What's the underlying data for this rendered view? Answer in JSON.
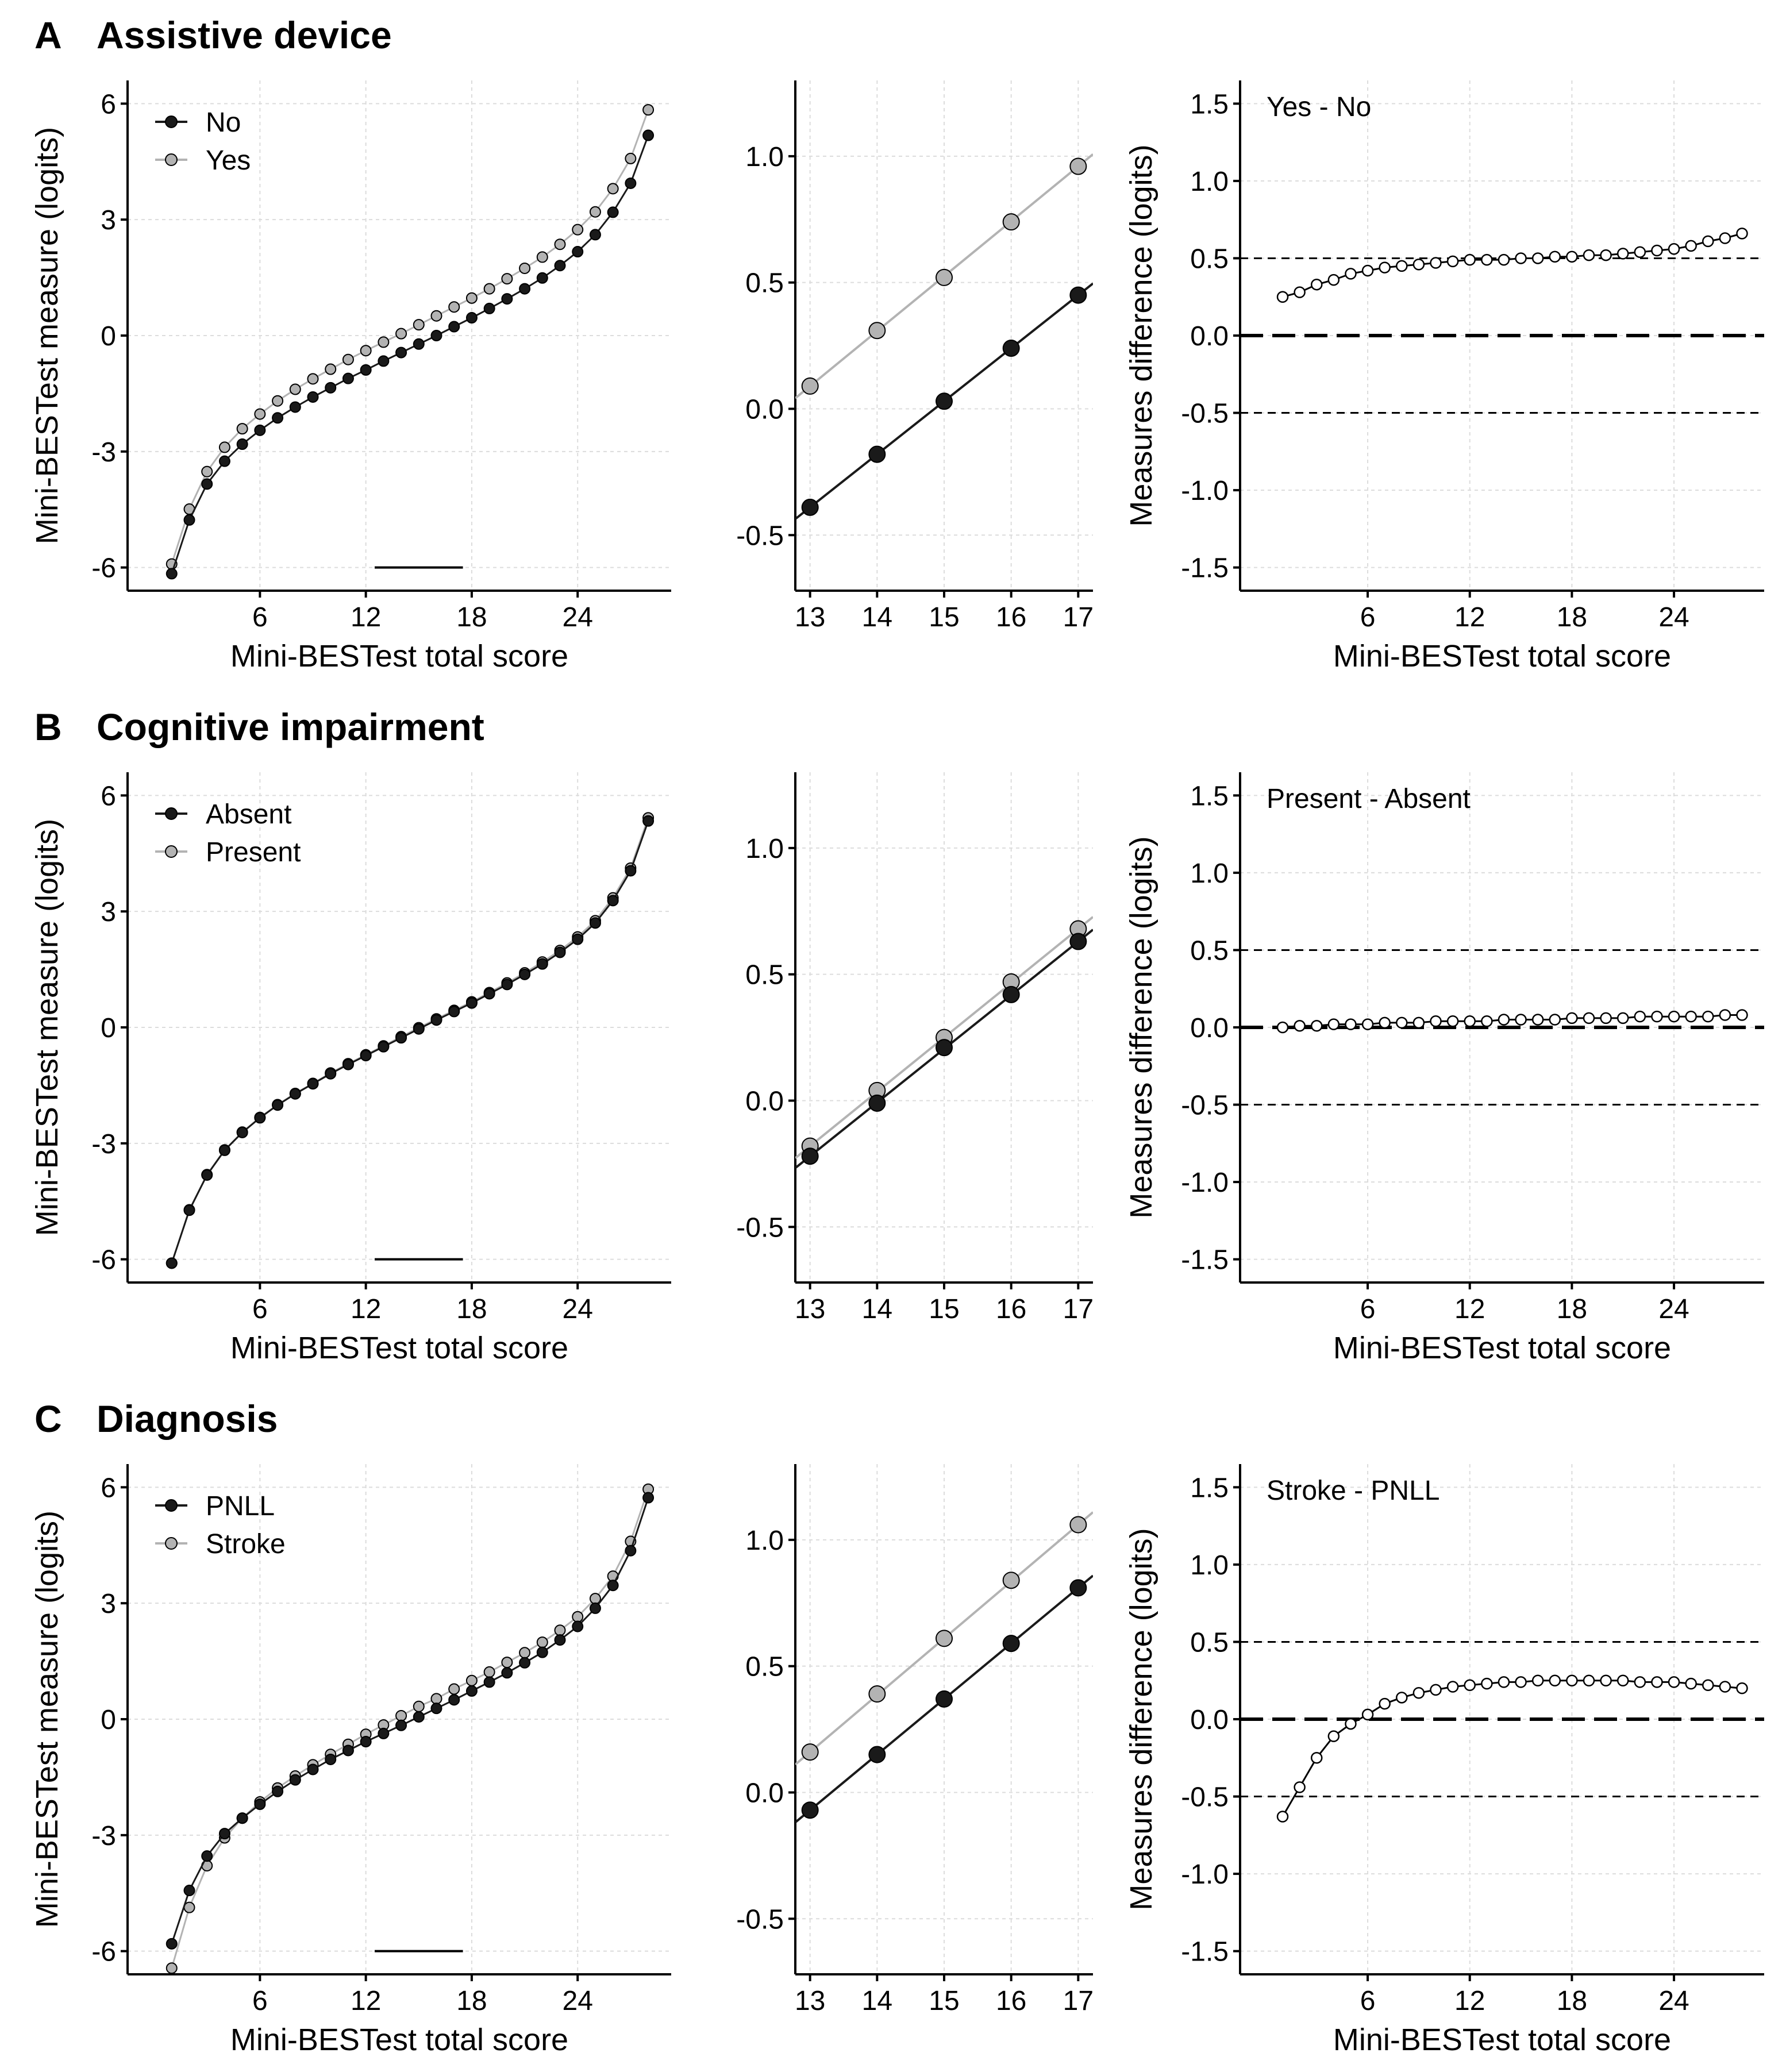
{
  "chart_data": [
    {
      "panel": "A",
      "title": "Assistive device",
      "legend": [
        {
          "label": "No",
          "color": "#1a1a1a"
        },
        {
          "label": "Yes",
          "color": "#b3b3b3"
        }
      ],
      "charts": [
        {
          "type": "line",
          "role": "full",
          "xlabel": "Mini-BESTest total score",
          "ylabel": "Mini-BESTest measure (logits)",
          "xlim": [
            -1.5,
            29.3
          ],
          "ylim": [
            -6.6,
            6.6
          ],
          "xticks": [
            6,
            12,
            18,
            24
          ],
          "yticks": [
            -6,
            -3,
            0,
            3,
            6
          ],
          "x": [
            1,
            2,
            3,
            4,
            5,
            6,
            7,
            8,
            9,
            10,
            11,
            12,
            13,
            14,
            15,
            16,
            17,
            18,
            19,
            20,
            21,
            22,
            23,
            24,
            25,
            26,
            27,
            28
          ],
          "series": [
            {
              "name": "No",
              "color": "#1a1a1a",
              "values": [
                -6.16,
                -4.77,
                -3.84,
                -3.25,
                -2.81,
                -2.45,
                -2.13,
                -1.85,
                -1.59,
                -1.35,
                -1.11,
                -0.89,
                -0.66,
                -0.44,
                -0.22,
                0.0,
                0.23,
                0.46,
                0.7,
                0.95,
                1.21,
                1.49,
                1.81,
                2.17,
                2.61,
                3.19,
                3.94,
                5.18
              ]
            },
            {
              "name": "Yes",
              "color": "#b3b3b3",
              "values": [
                -5.91,
                -4.49,
                -3.52,
                -2.89,
                -2.41,
                -2.03,
                -1.69,
                -1.39,
                -1.12,
                -0.87,
                -0.62,
                -0.39,
                -0.17,
                0.05,
                0.28,
                0.51,
                0.74,
                0.97,
                1.21,
                1.47,
                1.74,
                2.03,
                2.36,
                2.74,
                3.2,
                3.8,
                4.58,
                5.84
              ]
            }
          ],
          "reference_segment": {
            "x": [
              12.5,
              17.5
            ],
            "y": -6
          }
        },
        {
          "type": "line",
          "role": "zoom",
          "xlim": [
            12.78,
            17.22
          ],
          "ylim": [
            -0.72,
            1.3
          ],
          "xticks": [
            13,
            14,
            15,
            16,
            17
          ],
          "yticks": [
            -0.5,
            0.0,
            0.5,
            1.0
          ],
          "x": [
            13,
            14,
            15,
            16,
            17
          ],
          "series": [
            {
              "name": "No",
              "color": "#1a1a1a",
              "values": [
                -0.39,
                -0.18,
                0.03,
                0.24,
                0.45
              ]
            },
            {
              "name": "Yes",
              "color": "#b3b3b3",
              "values": [
                0.09,
                0.31,
                0.52,
                0.74,
                0.96
              ]
            }
          ]
        },
        {
          "type": "scatter",
          "role": "difference",
          "annotation": "Yes - No",
          "xlabel": "Mini-BESTest total score",
          "ylabel": "Measures difference (logits)",
          "xlim": [
            -1.5,
            29.3
          ],
          "ylim": [
            -1.65,
            1.65
          ],
          "xticks": [
            6,
            12,
            18,
            24
          ],
          "yticks": [
            -1.5,
            -1.0,
            -0.5,
            0.0,
            0.5,
            1.0,
            1.5
          ],
          "reference_lines": {
            "zero": 0,
            "thresholds": [
              -0.5,
              0.5
            ]
          },
          "x": [
            1,
            2,
            3,
            4,
            5,
            6,
            7,
            8,
            9,
            10,
            11,
            12,
            13,
            14,
            15,
            16,
            17,
            18,
            19,
            20,
            21,
            22,
            23,
            24,
            25,
            26,
            27,
            28
          ],
          "values": [
            0.25,
            0.28,
            0.33,
            0.36,
            0.4,
            0.42,
            0.44,
            0.45,
            0.46,
            0.47,
            0.48,
            0.49,
            0.49,
            0.49,
            0.5,
            0.5,
            0.51,
            0.51,
            0.52,
            0.52,
            0.53,
            0.54,
            0.55,
            0.56,
            0.58,
            0.61,
            0.63,
            0.66
          ]
        }
      ]
    },
    {
      "panel": "B",
      "title": "Cognitive impairment",
      "legend": [
        {
          "label": "Absent",
          "color": "#1a1a1a"
        },
        {
          "label": "Present",
          "color": "#b3b3b3"
        }
      ],
      "charts": [
        {
          "type": "line",
          "role": "full",
          "xlabel": "Mini-BESTest total score",
          "ylabel": "Mini-BESTest measure (logits)",
          "xlim": [
            -1.5,
            29.3
          ],
          "ylim": [
            -6.6,
            6.6
          ],
          "xticks": [
            6,
            12,
            18,
            24
          ],
          "yticks": [
            -6,
            -3,
            0,
            3,
            6
          ],
          "x": [
            1,
            2,
            3,
            4,
            5,
            6,
            7,
            8,
            9,
            10,
            11,
            12,
            13,
            14,
            15,
            16,
            17,
            18,
            19,
            20,
            21,
            22,
            23,
            24,
            25,
            26,
            27,
            28
          ],
          "series": [
            {
              "name": "Absent",
              "color": "#1a1a1a",
              "values": [
                -6.1,
                -4.73,
                -3.82,
                -3.18,
                -2.72,
                -2.34,
                -2.01,
                -1.72,
                -1.46,
                -1.2,
                -0.96,
                -0.73,
                -0.5,
                -0.27,
                -0.04,
                0.19,
                0.41,
                0.63,
                0.87,
                1.11,
                1.37,
                1.64,
                1.94,
                2.28,
                2.7,
                3.28,
                4.05,
                5.34
              ]
            },
            {
              "name": "Present",
              "color": "#b3b3b3",
              "values": [
                -6.1,
                -4.72,
                -3.81,
                -3.17,
                -2.71,
                -2.33,
                -2.0,
                -1.71,
                -1.45,
                -1.18,
                -0.94,
                -0.71,
                -0.48,
                -0.24,
                -0.01,
                0.22,
                0.44,
                0.66,
                0.9,
                1.15,
                1.41,
                1.69,
                1.99,
                2.34,
                2.76,
                3.35,
                4.12,
                5.42
              ]
            }
          ],
          "reference_segment": {
            "x": [
              12.5,
              17.5
            ],
            "y": -6
          }
        },
        {
          "type": "line",
          "role": "zoom",
          "xlim": [
            12.78,
            17.22
          ],
          "ylim": [
            -0.72,
            1.3
          ],
          "xticks": [
            13,
            14,
            15,
            16,
            17
          ],
          "yticks": [
            -0.5,
            0.0,
            0.5,
            1.0
          ],
          "x": [
            13,
            14,
            15,
            16,
            17
          ],
          "series": [
            {
              "name": "Absent",
              "color": "#1a1a1a",
              "values": [
                -0.22,
                -0.01,
                0.21,
                0.42,
                0.63
              ]
            },
            {
              "name": "Present",
              "color": "#b3b3b3",
              "values": [
                -0.18,
                0.04,
                0.25,
                0.47,
                0.68
              ]
            }
          ]
        },
        {
          "type": "scatter",
          "role": "difference",
          "annotation": "Present - Absent",
          "xlabel": "Mini-BESTest total score",
          "ylabel": "Measures difference (logits)",
          "xlim": [
            -1.5,
            29.3
          ],
          "ylim": [
            -1.65,
            1.65
          ],
          "xticks": [
            6,
            12,
            18,
            24
          ],
          "yticks": [
            -1.5,
            -1.0,
            -0.5,
            0.0,
            0.5,
            1.0,
            1.5
          ],
          "reference_lines": {
            "zero": 0,
            "thresholds": [
              -0.5,
              0.5
            ]
          },
          "x": [
            1,
            2,
            3,
            4,
            5,
            6,
            7,
            8,
            9,
            10,
            11,
            12,
            13,
            14,
            15,
            16,
            17,
            18,
            19,
            20,
            21,
            22,
            23,
            24,
            25,
            26,
            27,
            28
          ],
          "values": [
            0.0,
            0.01,
            0.01,
            0.02,
            0.02,
            0.02,
            0.03,
            0.03,
            0.03,
            0.04,
            0.04,
            0.04,
            0.04,
            0.05,
            0.05,
            0.05,
            0.05,
            0.06,
            0.06,
            0.06,
            0.06,
            0.07,
            0.07,
            0.07,
            0.07,
            0.07,
            0.08,
            0.08
          ]
        }
      ]
    },
    {
      "panel": "C",
      "title": "Diagnosis",
      "legend": [
        {
          "label": "PNLL",
          "color": "#1a1a1a"
        },
        {
          "label": "Stroke",
          "color": "#b3b3b3"
        }
      ],
      "charts": [
        {
          "type": "line",
          "role": "full",
          "xlabel": "Mini-BESTest total score",
          "ylabel": "Mini-BESTest measure (logits)",
          "xlim": [
            -1.5,
            29.3
          ],
          "ylim": [
            -6.6,
            6.6
          ],
          "xticks": [
            6,
            12,
            18,
            24
          ],
          "yticks": [
            -6,
            -3,
            0,
            3,
            6
          ],
          "x": [
            1,
            2,
            3,
            4,
            5,
            6,
            7,
            8,
            9,
            10,
            11,
            12,
            13,
            14,
            15,
            16,
            17,
            18,
            19,
            20,
            21,
            22,
            23,
            24,
            25,
            26,
            27,
            28
          ],
          "series": [
            {
              "name": "PNLL",
              "color": "#1a1a1a",
              "values": [
                -5.81,
                -4.43,
                -3.54,
                -2.96,
                -2.56,
                -2.2,
                -1.87,
                -1.57,
                -1.3,
                -1.04,
                -0.81,
                -0.58,
                -0.37,
                -0.16,
                0.06,
                0.28,
                0.5,
                0.73,
                0.96,
                1.2,
                1.46,
                1.73,
                2.05,
                2.4,
                2.87,
                3.46,
                4.36,
                5.73
              ]
            },
            {
              "name": "Stroke",
              "color": "#b3b3b3",
              "values": [
                -6.44,
                -4.87,
                -3.79,
                -3.07,
                -2.56,
                -2.14,
                -1.78,
                -1.47,
                -1.18,
                -0.91,
                -0.65,
                -0.39,
                -0.15,
                0.09,
                0.33,
                0.53,
                0.78,
                1.0,
                1.22,
                1.47,
                1.72,
                1.99,
                2.3,
                2.65,
                3.12,
                3.7,
                4.6,
                5.95
              ]
            }
          ],
          "reference_segment": {
            "x": [
              12.5,
              17.5
            ],
            "y": -6
          }
        },
        {
          "type": "line",
          "role": "zoom",
          "xlim": [
            12.78,
            17.22
          ],
          "ylim": [
            -0.72,
            1.3
          ],
          "xticks": [
            13,
            14,
            15,
            16,
            17
          ],
          "yticks": [
            -0.5,
            0.0,
            0.5,
            1.0
          ],
          "x": [
            13,
            14,
            15,
            16,
            17
          ],
          "series": [
            {
              "name": "PNLL",
              "color": "#1a1a1a",
              "values": [
                -0.07,
                0.15,
                0.37,
                0.59,
                0.81
              ]
            },
            {
              "name": "Stroke",
              "color": "#b3b3b3",
              "values": [
                0.16,
                0.39,
                0.61,
                0.84,
                1.06
              ]
            }
          ]
        },
        {
          "type": "scatter",
          "role": "difference",
          "annotation": "Stroke - PNLL",
          "xlabel": "Mini-BESTest total score",
          "ylabel": "Measures difference (logits)",
          "xlim": [
            -1.5,
            29.3
          ],
          "ylim": [
            -1.65,
            1.65
          ],
          "xticks": [
            6,
            12,
            18,
            24
          ],
          "yticks": [
            -1.5,
            -1.0,
            -0.5,
            0.0,
            0.5,
            1.0,
            1.5
          ],
          "reference_lines": {
            "zero": 0,
            "thresholds": [
              -0.5,
              0.5
            ]
          },
          "x": [
            1,
            2,
            3,
            4,
            5,
            6,
            7,
            8,
            9,
            10,
            11,
            12,
            13,
            14,
            15,
            16,
            17,
            18,
            19,
            20,
            21,
            22,
            23,
            24,
            25,
            26,
            27,
            28
          ],
          "values": [
            -0.63,
            -0.44,
            -0.25,
            -0.11,
            -0.03,
            0.03,
            0.1,
            0.14,
            0.17,
            0.19,
            0.21,
            0.22,
            0.23,
            0.24,
            0.24,
            0.25,
            0.25,
            0.25,
            0.25,
            0.25,
            0.25,
            0.24,
            0.24,
            0.24,
            0.23,
            0.22,
            0.21,
            0.2
          ]
        }
      ]
    }
  ]
}
